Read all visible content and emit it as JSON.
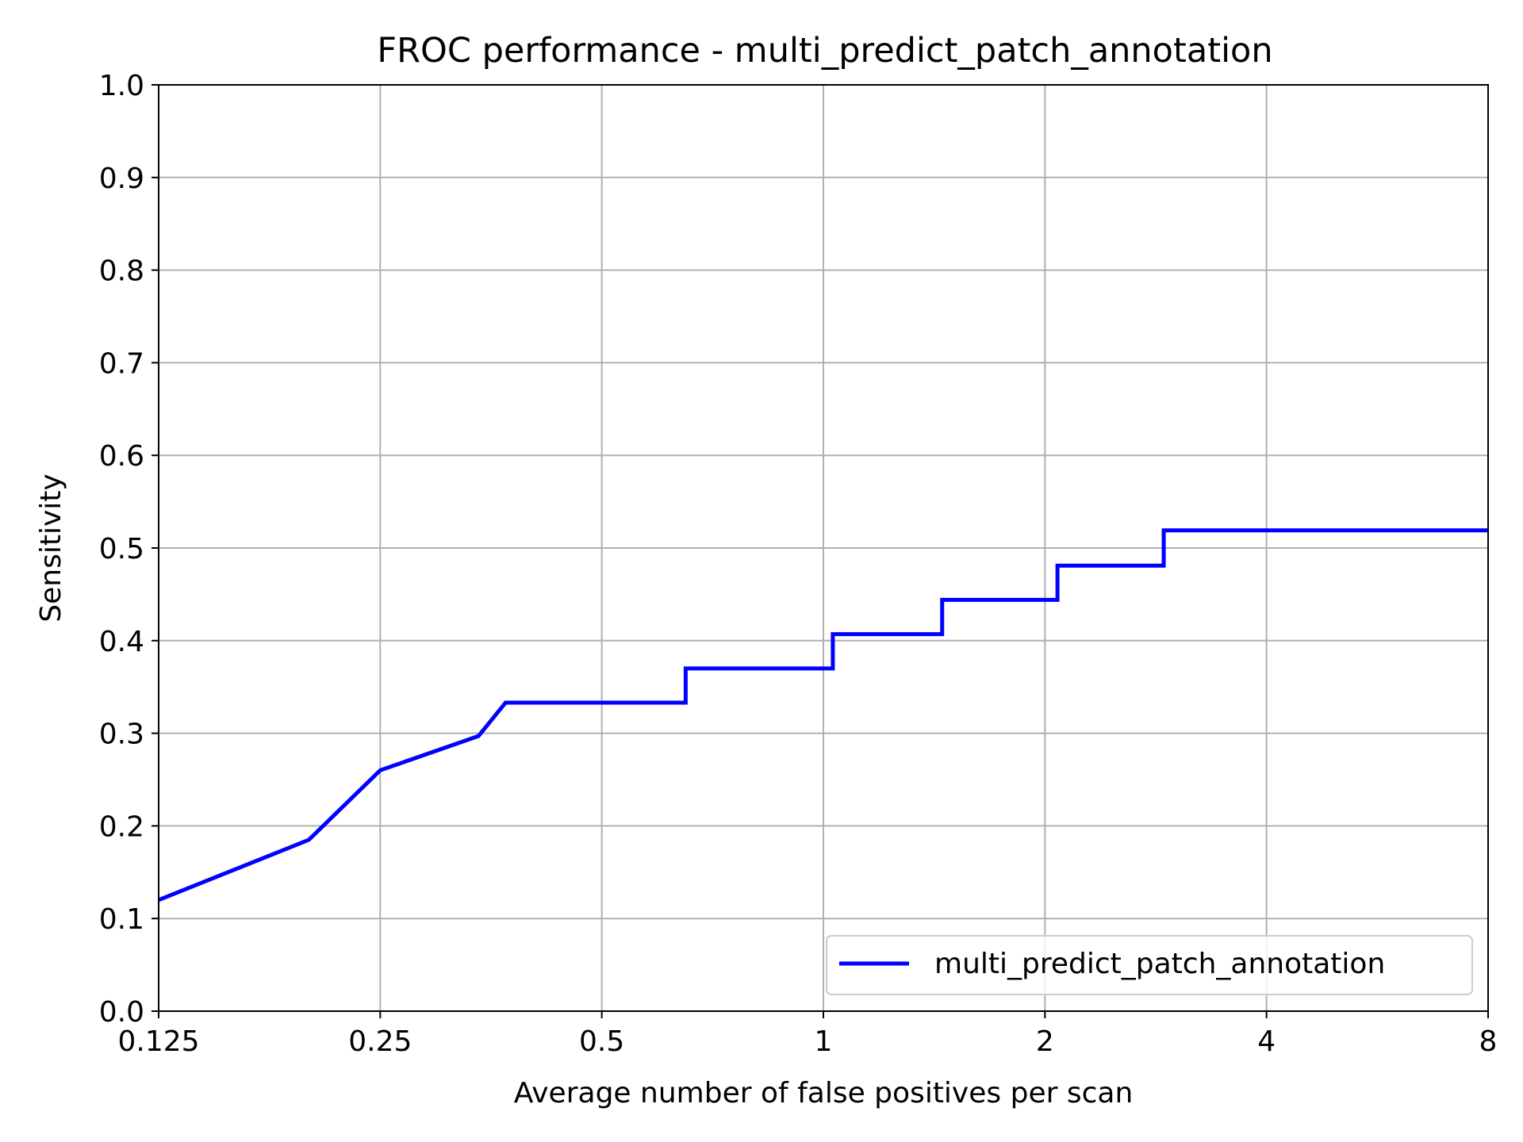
{
  "chart_data": {
    "type": "line",
    "title": "FROC performance - multi_predict_patch_annotation",
    "xlabel": "Average number of false positives per scan",
    "ylabel": "Sensitivity",
    "xscale": "log2",
    "xlim": [
      0.125,
      8
    ],
    "ylim": [
      0.0,
      1.0
    ],
    "xticks": [
      0.125,
      0.25,
      0.5,
      1,
      2,
      4,
      8
    ],
    "xtick_labels": [
      "0.125",
      "0.25",
      "0.5",
      "1",
      "2",
      "4",
      "8"
    ],
    "yticks": [
      0.0,
      0.1,
      0.2,
      0.3,
      0.4,
      0.5,
      0.6,
      0.7,
      0.8,
      0.9,
      1.0
    ],
    "ytick_labels": [
      "0.0",
      "0.1",
      "0.2",
      "0.3",
      "0.4",
      "0.5",
      "0.6",
      "0.7",
      "0.8",
      "0.9",
      "1.0"
    ],
    "grid": true,
    "legend_position": "lower-right",
    "series": [
      {
        "name": "multi_predict_patch_annotation",
        "color": "#0000ff",
        "points": [
          [
            0.125,
            0.12
          ],
          [
            0.2,
            0.185
          ],
          [
            0.25,
            0.26
          ],
          [
            0.34,
            0.297
          ],
          [
            0.37,
            0.333
          ],
          [
            0.65,
            0.333
          ],
          [
            0.65,
            0.37
          ],
          [
            1.03,
            0.37
          ],
          [
            1.03,
            0.407
          ],
          [
            1.45,
            0.407
          ],
          [
            1.45,
            0.444
          ],
          [
            2.08,
            0.444
          ],
          [
            2.08,
            0.481
          ],
          [
            2.9,
            0.481
          ],
          [
            2.9,
            0.519
          ],
          [
            8.0,
            0.519
          ]
        ]
      }
    ]
  }
}
